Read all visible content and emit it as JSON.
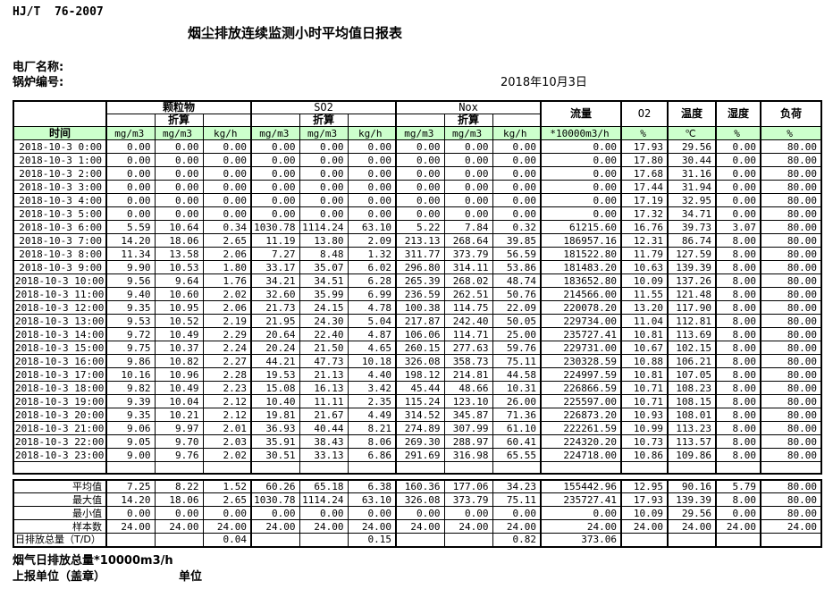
{
  "doc": {
    "standard": "HJ/T  76-2007",
    "title": "烟尘排放连续监测小时平均值日报表",
    "plant_label": "电厂名称:",
    "boiler_label": "锅炉编号:",
    "date": "2018年10月3日",
    "footer_flue_total": "烟气日排放总量*10000m3/h",
    "footer_report_unit": "上报单位（盖章）",
    "footer_unit": "单位"
  },
  "table": {
    "time_header": "时间",
    "converted_label": "折算",
    "header_green_bg": "#ccffcc",
    "groups": [
      {
        "label": "颗粒物",
        "units": [
          "mg/m3",
          "mg/m3",
          "kg/h"
        ]
      },
      {
        "label": "SO2",
        "units": [
          "mg/m3",
          "mg/m3",
          "kg/h"
        ]
      },
      {
        "label": "Nox",
        "units": [
          "mg/m3",
          "mg/m3",
          "kg/h"
        ]
      }
    ],
    "single_cols": [
      {
        "label": "流量",
        "unit": "*10000m3/h"
      },
      {
        "label": "O2",
        "unit": "%"
      },
      {
        "label": "温度",
        "unit": "℃"
      },
      {
        "label": "湿度",
        "unit": "%"
      },
      {
        "label": "负荷",
        "unit": "%"
      }
    ],
    "rows": [
      {
        "time": "2018-10-3 0:00",
        "values": [
          "0.00",
          "0.00",
          "0.00",
          "0.00",
          "0.00",
          "0.00",
          "0.00",
          "0.00",
          "0.00",
          "0.00",
          "17.93",
          "29.56",
          "0.00",
          "80.00"
        ]
      },
      {
        "time": "2018-10-3 1:00",
        "values": [
          "0.00",
          "0.00",
          "0.00",
          "0.00",
          "0.00",
          "0.00",
          "0.00",
          "0.00",
          "0.00",
          "0.00",
          "17.80",
          "30.44",
          "0.00",
          "80.00"
        ]
      },
      {
        "time": "2018-10-3 2:00",
        "values": [
          "0.00",
          "0.00",
          "0.00",
          "0.00",
          "0.00",
          "0.00",
          "0.00",
          "0.00",
          "0.00",
          "0.00",
          "17.68",
          "31.16",
          "0.00",
          "80.00"
        ]
      },
      {
        "time": "2018-10-3 3:00",
        "values": [
          "0.00",
          "0.00",
          "0.00",
          "0.00",
          "0.00",
          "0.00",
          "0.00",
          "0.00",
          "0.00",
          "0.00",
          "17.44",
          "31.94",
          "0.00",
          "80.00"
        ]
      },
      {
        "time": "2018-10-3 4:00",
        "values": [
          "0.00",
          "0.00",
          "0.00",
          "0.00",
          "0.00",
          "0.00",
          "0.00",
          "0.00",
          "0.00",
          "0.00",
          "17.19",
          "32.95",
          "0.00",
          "80.00"
        ]
      },
      {
        "time": "2018-10-3 5:00",
        "values": [
          "0.00",
          "0.00",
          "0.00",
          "0.00",
          "0.00",
          "0.00",
          "0.00",
          "0.00",
          "0.00",
          "0.00",
          "17.32",
          "34.71",
          "0.00",
          "80.00"
        ]
      },
      {
        "time": "2018-10-3 6:00",
        "values": [
          "5.59",
          "10.64",
          "0.34",
          "1030.78",
          "1114.24",
          "63.10",
          "5.22",
          "7.84",
          "0.32",
          "61215.60",
          "16.76",
          "39.73",
          "3.07",
          "80.00"
        ]
      },
      {
        "time": "2018-10-3 7:00",
        "values": [
          "14.20",
          "18.06",
          "2.65",
          "11.19",
          "13.80",
          "2.09",
          "213.13",
          "268.64",
          "39.85",
          "186957.16",
          "12.31",
          "86.74",
          "8.00",
          "80.00"
        ]
      },
      {
        "time": "2018-10-3 8:00",
        "values": [
          "11.34",
          "13.58",
          "2.06",
          "7.27",
          "8.48",
          "1.32",
          "311.77",
          "373.79",
          "56.59",
          "181522.80",
          "11.79",
          "127.59",
          "8.00",
          "80.00"
        ]
      },
      {
        "time": "2018-10-3 9:00",
        "values": [
          "9.90",
          "10.53",
          "1.80",
          "33.17",
          "35.07",
          "6.02",
          "296.80",
          "314.11",
          "53.86",
          "181483.20",
          "10.63",
          "139.39",
          "8.00",
          "80.00"
        ]
      },
      {
        "time": "2018-10-3 10:00",
        "values": [
          "9.56",
          "9.64",
          "1.76",
          "34.21",
          "34.51",
          "6.28",
          "265.39",
          "268.02",
          "48.74",
          "183652.80",
          "10.09",
          "137.26",
          "8.00",
          "80.00"
        ]
      },
      {
        "time": "2018-10-3 11:00",
        "values": [
          "9.40",
          "10.60",
          "2.02",
          "32.60",
          "35.99",
          "6.99",
          "236.59",
          "262.51",
          "50.76",
          "214566.00",
          "11.55",
          "121.48",
          "8.00",
          "80.00"
        ]
      },
      {
        "time": "2018-10-3 12:00",
        "values": [
          "9.35",
          "10.95",
          "2.06",
          "21.73",
          "24.15",
          "4.78",
          "100.38",
          "114.75",
          "22.09",
          "220078.20",
          "13.20",
          "117.90",
          "8.00",
          "80.00"
        ]
      },
      {
        "time": "2018-10-3 13:00",
        "values": [
          "9.53",
          "10.52",
          "2.19",
          "21.95",
          "24.30",
          "5.04",
          "217.87",
          "242.40",
          "50.05",
          "229734.00",
          "11.04",
          "112.81",
          "8.00",
          "80.00"
        ]
      },
      {
        "time": "2018-10-3 14:00",
        "values": [
          "9.72",
          "10.49",
          "2.29",
          "20.64",
          "22.40",
          "4.87",
          "106.06",
          "114.71",
          "25.00",
          "235727.41",
          "10.81",
          "113.69",
          "8.00",
          "80.00"
        ]
      },
      {
        "time": "2018-10-3 15:00",
        "values": [
          "9.75",
          "10.37",
          "2.24",
          "20.24",
          "21.50",
          "4.65",
          "260.15",
          "277.63",
          "59.76",
          "229731.00",
          "10.67",
          "102.15",
          "8.00",
          "80.00"
        ]
      },
      {
        "time": "2018-10-3 16:00",
        "values": [
          "9.86",
          "10.82",
          "2.27",
          "44.21",
          "47.73",
          "10.18",
          "326.08",
          "358.73",
          "75.11",
          "230328.59",
          "10.88",
          "106.21",
          "8.00",
          "80.00"
        ]
      },
      {
        "time": "2018-10-3 17:00",
        "values": [
          "10.16",
          "10.96",
          "2.28",
          "19.53",
          "21.13",
          "4.40",
          "198.12",
          "214.81",
          "44.58",
          "224997.59",
          "10.81",
          "107.05",
          "8.00",
          "80.00"
        ]
      },
      {
        "time": "2018-10-3 18:00",
        "values": [
          "9.82",
          "10.49",
          "2.23",
          "15.08",
          "16.13",
          "3.42",
          "45.44",
          "48.66",
          "10.31",
          "226866.59",
          "10.71",
          "108.23",
          "8.00",
          "80.00"
        ]
      },
      {
        "time": "2018-10-3 19:00",
        "values": [
          "9.39",
          "10.04",
          "2.12",
          "10.40",
          "11.11",
          "2.35",
          "115.24",
          "123.10",
          "26.00",
          "225597.00",
          "10.71",
          "108.15",
          "8.00",
          "80.00"
        ]
      },
      {
        "time": "2018-10-3 20:00",
        "values": [
          "9.35",
          "10.21",
          "2.12",
          "19.81",
          "21.67",
          "4.49",
          "314.52",
          "345.87",
          "71.36",
          "226873.20",
          "10.93",
          "108.01",
          "8.00",
          "80.00"
        ]
      },
      {
        "time": "2018-10-3 21:00",
        "values": [
          "9.06",
          "9.97",
          "2.01",
          "36.93",
          "40.44",
          "8.21",
          "274.89",
          "307.99",
          "61.10",
          "222261.59",
          "10.99",
          "113.23",
          "8.00",
          "80.00"
        ]
      },
      {
        "time": "2018-10-3 22:00",
        "values": [
          "9.05",
          "9.70",
          "2.03",
          "35.91",
          "38.43",
          "8.06",
          "269.30",
          "288.97",
          "60.41",
          "224320.20",
          "10.73",
          "113.57",
          "8.00",
          "80.00"
        ]
      },
      {
        "time": "2018-10-3 23:00",
        "values": [
          "9.00",
          "9.76",
          "2.02",
          "30.51",
          "33.13",
          "6.86",
          "291.69",
          "316.98",
          "65.55",
          "224718.00",
          "10.86",
          "109.86",
          "8.00",
          "80.00"
        ]
      }
    ],
    "summary_rows": [
      {
        "label": "平均值",
        "values": [
          "7.25",
          "8.22",
          "1.52",
          "60.26",
          "65.18",
          "6.38",
          "160.36",
          "177.06",
          "34.23",
          "155442.96",
          "12.95",
          "90.16",
          "5.79",
          "80.00"
        ]
      },
      {
        "label": "最大值",
        "values": [
          "14.20",
          "18.06",
          "2.65",
          "1030.78",
          "1114.24",
          "63.10",
          "326.08",
          "373.79",
          "75.11",
          "235727.41",
          "17.93",
          "139.39",
          "8.00",
          "80.00"
        ]
      },
      {
        "label": "最小值",
        "values": [
          "0.00",
          "0.00",
          "0.00",
          "0.00",
          "0.00",
          "0.00",
          "0.00",
          "0.00",
          "0.00",
          "0.00",
          "10.09",
          "29.56",
          "0.00",
          "80.00"
        ]
      },
      {
        "label": "样本数",
        "values": [
          "24.00",
          "24.00",
          "24.00",
          "24.00",
          "24.00",
          "24.00",
          "24.00",
          "24.00",
          "24.00",
          "24.00",
          "24.00",
          "24.00",
          "24.00",
          "24.00"
        ]
      }
    ],
    "total_row": {
      "label": "日排放总量（T/D）",
      "values": [
        "",
        "",
        "0.04",
        "",
        "",
        "0.15",
        "",
        "",
        "0.82",
        "373.06",
        "",
        "",
        "",
        ""
      ]
    }
  }
}
